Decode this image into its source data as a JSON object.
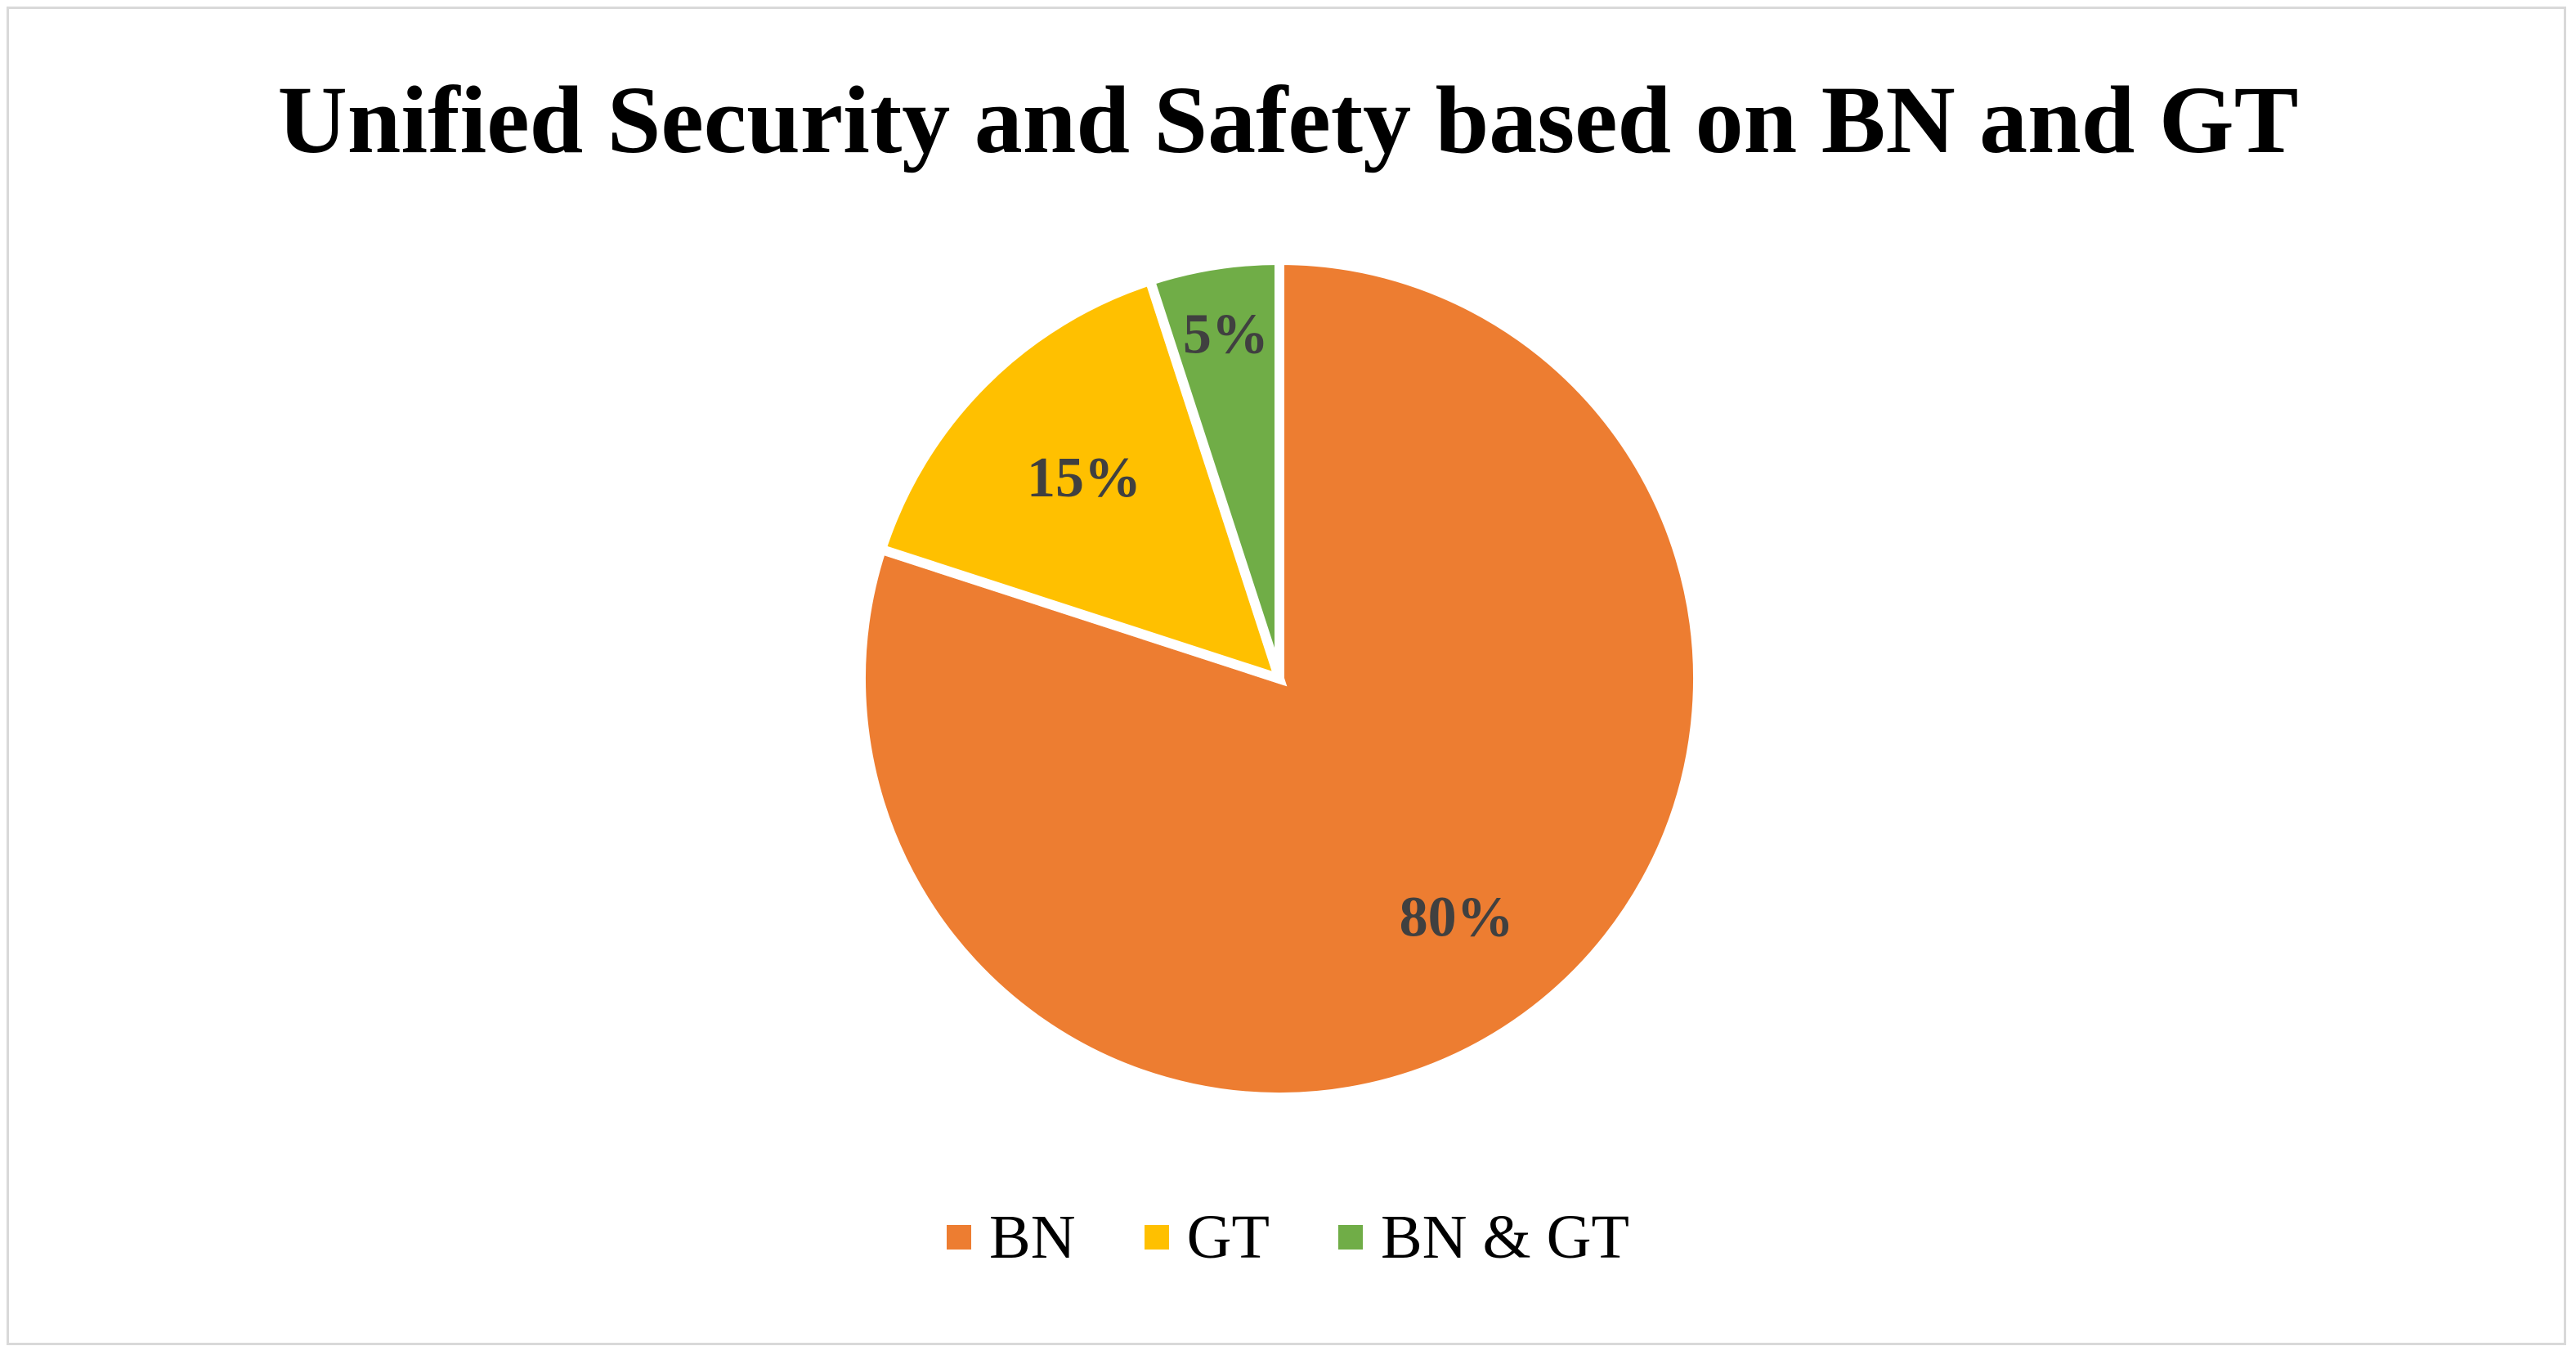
{
  "chart_data": {
    "type": "pie",
    "title": "Unified Security and Safety based on BN and GT",
    "categories": [
      "BN",
      "GT",
      "BN & GT"
    ],
    "values": [
      80,
      15,
      5
    ],
    "labels": [
      "80%",
      "15%",
      "5%"
    ],
    "colors": [
      "#ed7d31",
      "#ffc000",
      "#70ad47"
    ],
    "legend_position": "bottom",
    "start_angle": "top, clockwise"
  }
}
